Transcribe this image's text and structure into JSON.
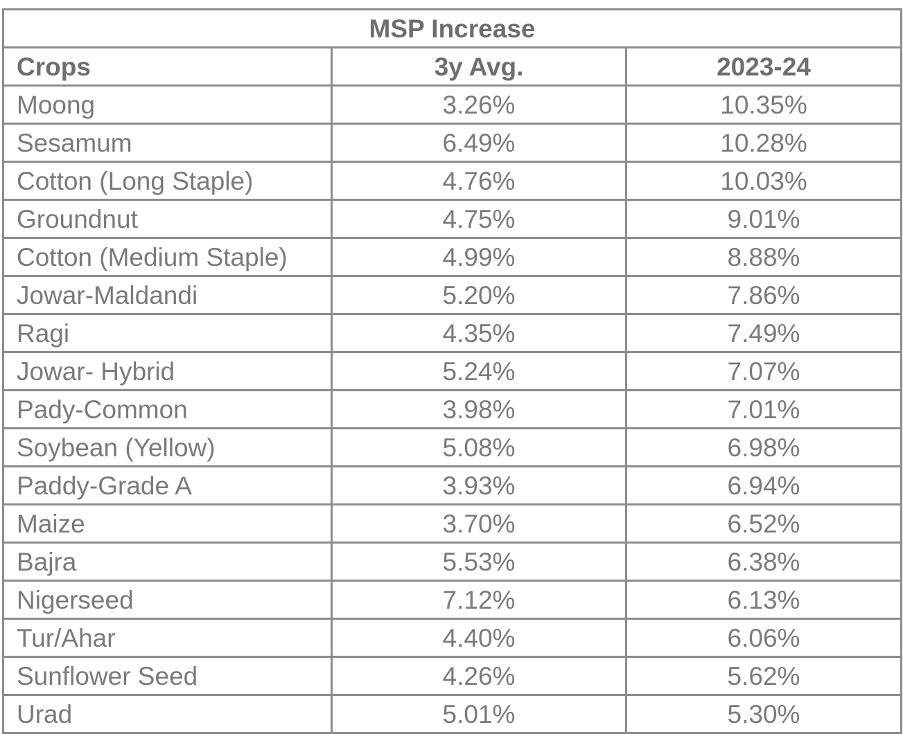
{
  "table": {
    "title": "MSP Increase",
    "headers": [
      "Crops",
      "3y Avg.",
      "2023-24"
    ],
    "rows": [
      {
        "crop": "Moong",
        "avg3y": "3.26%",
        "y2023_24": "10.35%"
      },
      {
        "crop": "Sesamum",
        "avg3y": "6.49%",
        "y2023_24": "10.28%"
      },
      {
        "crop": "Cotton (Long Staple)",
        "avg3y": "4.76%",
        "y2023_24": "10.03%"
      },
      {
        "crop": "Groundnut",
        "avg3y": "4.75%",
        "y2023_24": "9.01%"
      },
      {
        "crop": "Cotton (Medium Staple)",
        "avg3y": "4.99%",
        "y2023_24": "8.88%"
      },
      {
        "crop": "Jowar-Maldandi",
        "avg3y": "5.20%",
        "y2023_24": "7.86%"
      },
      {
        "crop": "Ragi",
        "avg3y": "4.35%",
        "y2023_24": "7.49%"
      },
      {
        "crop": "Jowar- Hybrid",
        "avg3y": "5.24%",
        "y2023_24": "7.07%"
      },
      {
        "crop": "Pady-Common",
        "avg3y": "3.98%",
        "y2023_24": "7.01%"
      },
      {
        "crop": "Soybean (Yellow)",
        "avg3y": "5.08%",
        "y2023_24": "6.98%"
      },
      {
        "crop": "Paddy-Grade A",
        "avg3y": "3.93%",
        "y2023_24": "6.94%"
      },
      {
        "crop": "Maize",
        "avg3y": "3.70%",
        "y2023_24": "6.52%"
      },
      {
        "crop": "Bajra",
        "avg3y": "5.53%",
        "y2023_24": "6.38%"
      },
      {
        "crop": "Nigerseed",
        "avg3y": "7.12%",
        "y2023_24": "6.13%"
      },
      {
        "crop": "Tur/Ahar",
        "avg3y": "4.40%",
        "y2023_24": "6.06%"
      },
      {
        "crop": "Sunflower Seed",
        "avg3y": "4.26%",
        "y2023_24": "5.62%"
      },
      {
        "crop": "Urad",
        "avg3y": "5.01%",
        "y2023_24": "5.30%"
      }
    ]
  }
}
